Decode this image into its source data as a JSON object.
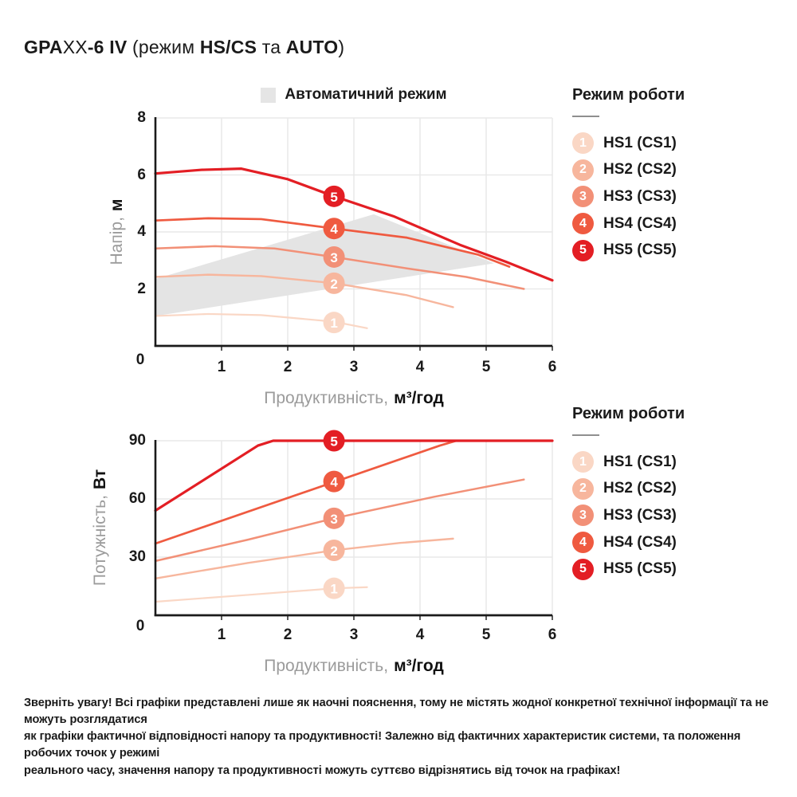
{
  "title": {
    "segments": [
      {
        "t": "GPA",
        "b": true
      },
      {
        "t": "XX",
        "b": false
      },
      {
        "t": "-6 IV ",
        "b": true
      },
      {
        "t": "(режим ",
        "b": false
      },
      {
        "t": "HS/CS",
        "b": true
      },
      {
        "t": " та ",
        "b": false
      },
      {
        "t": "AUTO",
        "b": true
      },
      {
        "t": ")",
        "b": false
      }
    ]
  },
  "legend": {
    "title": "Режим роботи",
    "items": [
      {
        "badge": "1",
        "label": "HS1 (CS1)",
        "color": "#fad7c5"
      },
      {
        "badge": "2",
        "label": "HS2 (CS2)",
        "color": "#f7b69d"
      },
      {
        "badge": "3",
        "label": "HS3 (CS3)",
        "color": "#f29077"
      },
      {
        "badge": "4",
        "label": "HS4 (CS4)",
        "color": "#ef5a40"
      },
      {
        "badge": "5",
        "label": "HS5 (CS5)",
        "color": "#e31e24"
      }
    ]
  },
  "theme": {
    "accent_red": "#e31e24",
    "grid": "#e9e9e9",
    "region": "#e4e4e4",
    "axis": "#1a1a1a",
    "muted_text": "#9b9b9b",
    "auto_square": "#e5e5e5"
  },
  "chart_data": [
    {
      "type": "line",
      "title": "Автоматичний режим",
      "xlabel": "Продуктивність, м³/год",
      "xlabel_light": "Продуктивність,",
      "xlabel_bold": "м³/год",
      "ylabel": "Напір, м",
      "ylabel_light": "Напір,",
      "ylabel_bold": "м",
      "xlim": [
        0,
        6
      ],
      "ylim": [
        0,
        8
      ],
      "xticks": [
        0,
        1,
        2,
        3,
        4,
        5,
        6
      ],
      "yticks": [
        0,
        2,
        4,
        6,
        8
      ],
      "grid": true,
      "auto_region": {
        "label": "Автоматичний режим",
        "polygon": [
          [
            0,
            2.35
          ],
          [
            3.3,
            4.62
          ],
          [
            5.12,
            2.9
          ],
          [
            0,
            1.05
          ]
        ]
      },
      "series": [
        {
          "name": "HS1 (CS1)",
          "badge": "1",
          "color": "#fad7c5",
          "width": 2.2,
          "points": [
            [
              0,
              1.05
            ],
            [
              0.8,
              1.12
            ],
            [
              1.6,
              1.08
            ],
            [
              2.7,
              0.85
            ],
            [
              3.2,
              0.62
            ]
          ],
          "badge_at": [
            2.7,
            0.82
          ]
        },
        {
          "name": "HS2 (CS2)",
          "badge": "2",
          "color": "#f7b69d",
          "width": 2.4,
          "points": [
            [
              0,
              2.42
            ],
            [
              0.8,
              2.5
            ],
            [
              1.6,
              2.45
            ],
            [
              2.7,
              2.2
            ],
            [
              3.8,
              1.78
            ],
            [
              4.5,
              1.36
            ]
          ],
          "badge_at": [
            2.7,
            2.2
          ]
        },
        {
          "name": "HS3 (CS3)",
          "badge": "3",
          "color": "#f29077",
          "width": 2.5,
          "points": [
            [
              0,
              3.42
            ],
            [
              0.9,
              3.5
            ],
            [
              1.8,
              3.42
            ],
            [
              2.7,
              3.12
            ],
            [
              3.8,
              2.72
            ],
            [
              4.7,
              2.42
            ],
            [
              5.57,
              2.0
            ]
          ],
          "badge_at": [
            2.7,
            3.12
          ]
        },
        {
          "name": "HS4 (CS4)",
          "badge": "4",
          "color": "#ef5a40",
          "width": 2.7,
          "points": [
            [
              0,
              4.4
            ],
            [
              0.8,
              4.48
            ],
            [
              1.6,
              4.45
            ],
            [
              2.7,
              4.12
            ],
            [
              3.8,
              3.8
            ],
            [
              4.88,
              3.2
            ],
            [
              5.35,
              2.78
            ]
          ],
          "badge_at": [
            2.7,
            4.12
          ]
        },
        {
          "name": "HS5 (CS5)",
          "badge": "5",
          "color": "#e31e24",
          "width": 3.2,
          "points": [
            [
              0,
              6.05
            ],
            [
              0.7,
              6.18
            ],
            [
              1.3,
              6.22
            ],
            [
              2.0,
              5.85
            ],
            [
              2.7,
              5.25
            ],
            [
              3.6,
              4.55
            ],
            [
              4.6,
              3.55
            ],
            [
              5.3,
              2.95
            ],
            [
              6,
              2.3
            ]
          ],
          "badge_at": [
            2.7,
            5.25
          ]
        }
      ]
    },
    {
      "type": "line",
      "title": "",
      "xlabel": "Продуктивність, м³/год",
      "xlabel_light": "Продуктивність,",
      "xlabel_bold": "м³/год",
      "ylabel": "Потужність, Вт",
      "ylabel_light": "Потужність,",
      "ylabel_bold": "Вт",
      "xlim": [
        0,
        6
      ],
      "ylim": [
        0,
        90
      ],
      "xticks": [
        0,
        1,
        2,
        3,
        4,
        5,
        6
      ],
      "yticks": [
        0,
        30,
        60,
        90
      ],
      "grid": true,
      "series": [
        {
          "name": "HS1 (CS1)",
          "badge": "1",
          "color": "#fad7c5",
          "width": 2.2,
          "points": [
            [
              0,
              7
            ],
            [
              1.4,
              10.5
            ],
            [
              2.7,
              13.9
            ],
            [
              3.2,
              14.5
            ]
          ],
          "badge_at": [
            2.7,
            13.9
          ]
        },
        {
          "name": "HS2 (CS2)",
          "badge": "2",
          "color": "#f7b69d",
          "width": 2.4,
          "points": [
            [
              0,
              19
            ],
            [
              1.4,
              27
            ],
            [
              2.7,
              33.5
            ],
            [
              3.7,
              37.3
            ],
            [
              4.5,
              39.5
            ]
          ],
          "badge_at": [
            2.7,
            33.5
          ]
        },
        {
          "name": "HS3 (CS3)",
          "badge": "3",
          "color": "#f29077",
          "width": 2.5,
          "points": [
            [
              0,
              28
            ],
            [
              1.4,
              39
            ],
            [
              2.7,
              50
            ],
            [
              4.2,
              61
            ],
            [
              5.57,
              70
            ]
          ],
          "badge_at": [
            2.7,
            50
          ]
        },
        {
          "name": "HS4 (CS4)",
          "badge": "4",
          "color": "#ef5a40",
          "width": 2.7,
          "points": [
            [
              0,
              37
            ],
            [
              4.3,
              87.5
            ],
            [
              4.55,
              90
            ],
            [
              6,
              90
            ]
          ],
          "badge_at": [
            2.7,
            69
          ]
        },
        {
          "name": "HS5 (CS5)",
          "badge": "5",
          "color": "#e31e24",
          "width": 3.2,
          "points": [
            [
              0,
              54
            ],
            [
              1.55,
              87.5
            ],
            [
              1.78,
              90
            ],
            [
              6,
              90
            ]
          ],
          "badge_at": [
            2.7,
            90
          ]
        }
      ]
    }
  ],
  "disclaimer": {
    "lines": [
      "Зверніть увагу! Всі графіки представлені лише як наочні пояснення, тому не містять жодної конкретної технічної інформації та не можуть розглядатися",
      "як графіки фактичної відповідності напору та продуктивності! Залежно від фактичних характеристик системи, та положення робочих точок у режимі",
      "реального часу, значення напору та продуктивності можуть суттєво відрізнятись від точок на графіках!"
    ]
  }
}
